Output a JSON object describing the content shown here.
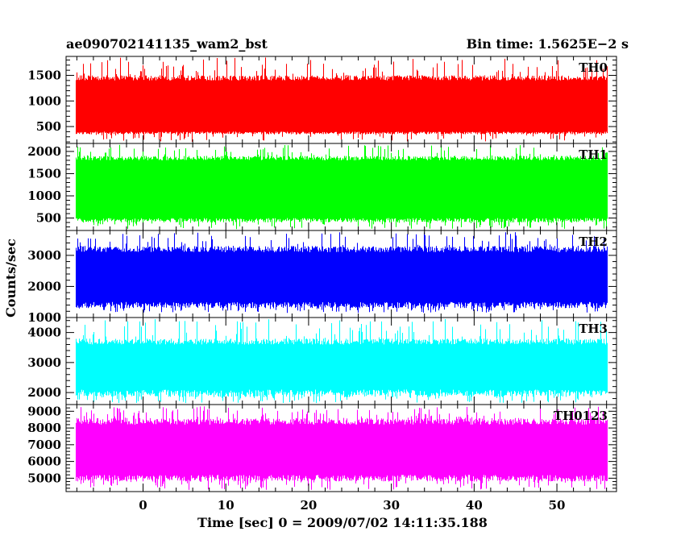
{
  "header": {
    "title": "ae090702141135_wam2_bst",
    "bin_time": "Bin time: 1.5625E−2 s"
  },
  "axes": {
    "xlabel": "Time [sec] 0 = 2009/07/02 14:11:35.188",
    "ylabel": "Counts/sec"
  },
  "chart_data": {
    "type": "line",
    "title": "ae090702141135_wam2_bst",
    "subtitle": "Bin time: 1.5625E−2 s",
    "xlabel": "Time [sec] 0 = 2009/07/02 14:11:35.188",
    "ylabel": "Counts/sec",
    "xlim": [
      -9.3,
      57.2
    ],
    "x_ticks": [
      0,
      10,
      20,
      30,
      40,
      50
    ],
    "x_ticks_labeled": [
      0,
      10,
      20,
      30,
      40,
      50
    ],
    "data_x_range": [
      -8.1,
      56.0
    ],
    "bin_time_s": 0.015625,
    "grid": false,
    "panels": [
      {
        "name": "TH0",
        "color": "#ff0000",
        "ylim": [
          170,
          1870
        ],
        "y_ticks": [
          500,
          1000,
          1500
        ],
        "typical_range": [
          400,
          1400
        ],
        "peak_range": [
          1500,
          1850
        ],
        "trough_range": [
          200,
          350
        ]
      },
      {
        "name": "TH1",
        "color": "#00ff00",
        "ylim": [
          220,
          2180
        ],
        "y_ticks": [
          500,
          1000,
          1500,
          2000
        ],
        "typical_range": [
          500,
          1800
        ],
        "peak_range": [
          1900,
          2150
        ],
        "trough_range": [
          250,
          400
        ]
      },
      {
        "name": "TH2",
        "color": "#0000ff",
        "ylim": [
          1000,
          3800
        ],
        "y_ticks": [
          1000,
          2000,
          3000
        ],
        "typical_range": [
          1500,
          3100
        ],
        "peak_range": [
          3300,
          3750
        ],
        "trough_range": [
          1150,
          1300
        ]
      },
      {
        "name": "TH3",
        "color": "#00ffff",
        "ylim": [
          1600,
          4500
        ],
        "y_ticks": [
          2000,
          3000,
          4000
        ],
        "typical_range": [
          2100,
          3600
        ],
        "peak_range": [
          3800,
          4450
        ],
        "trough_range": [
          1650,
          1850
        ]
      },
      {
        "name": "TH0123",
        "color": "#ff00ff",
        "ylim": [
          4200,
          9400
        ],
        "y_ticks": [
          5000,
          6000,
          7000,
          8000,
          9000
        ],
        "typical_range": [
          5200,
          8200
        ],
        "peak_range": [
          8600,
          9300
        ],
        "trough_range": [
          4300,
          4800
        ]
      }
    ]
  }
}
